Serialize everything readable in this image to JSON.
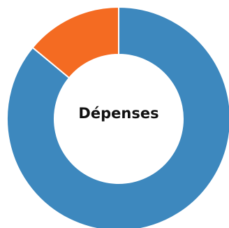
{
  "chart_data": {
    "type": "pie",
    "variant": "donut",
    "center_label": "Dépenses",
    "slices": [
      {
        "value": 86,
        "color": "#3d88be"
      },
      {
        "value": 14,
        "color": "#f46b22"
      }
    ],
    "legend": "none"
  }
}
